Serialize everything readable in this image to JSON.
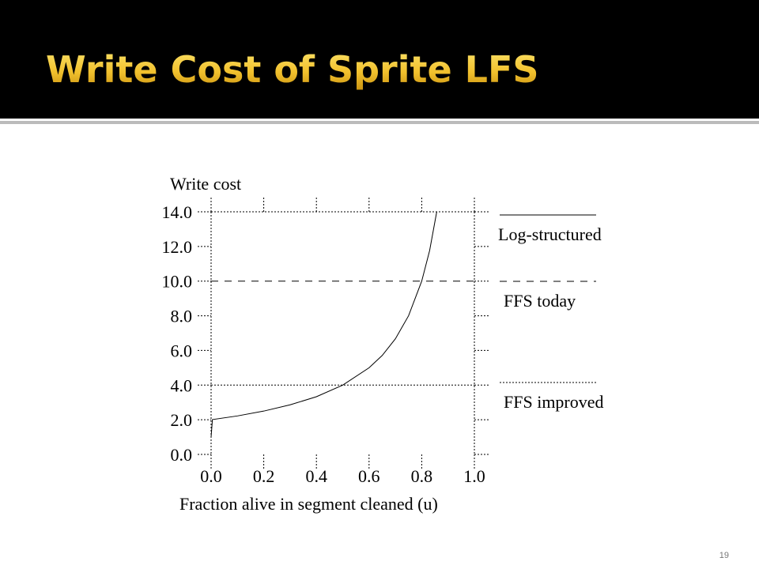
{
  "slide": {
    "title": "Write Cost of Sprite LFS",
    "page_number": "19"
  },
  "chart_data": {
    "type": "line",
    "y_label": "Write cost",
    "x_label": "Fraction alive in segment cleaned (u)",
    "xlim": [
      0,
      1
    ],
    "ylim": [
      0,
      14
    ],
    "xticks": [
      {
        "value": 0,
        "label": "0.0"
      },
      {
        "value": 0.2,
        "label": "0.2"
      },
      {
        "value": 0.4,
        "label": "0.4"
      },
      {
        "value": 0.6,
        "label": "0.6"
      },
      {
        "value": 0.8,
        "label": "0.8"
      },
      {
        "value": 1,
        "label": "1.0"
      }
    ],
    "yticks": [
      {
        "value": 0,
        "label": "0.0"
      },
      {
        "value": 2,
        "label": "2.0"
      },
      {
        "value": 4,
        "label": "4.0"
      },
      {
        "value": 6,
        "label": "6.0"
      },
      {
        "value": 8,
        "label": "8.0"
      },
      {
        "value": 10,
        "label": "10.0"
      },
      {
        "value": 12,
        "label": "12.0"
      },
      {
        "value": 14,
        "label": "14.0"
      }
    ],
    "grid": false,
    "series": [
      {
        "name": "Log-structured",
        "color": "#000000",
        "dash": "solid",
        "x": [
          0,
          0.005,
          0.1,
          0.2,
          0.3,
          0.4,
          0.5,
          0.6,
          0.65,
          0.7,
          0.75,
          0.8,
          0.83,
          0.857
        ],
        "values": [
          1,
          2.01,
          2.22,
          2.5,
          2.86,
          3.33,
          4,
          5,
          5.71,
          6.67,
          8,
          10,
          11.76,
          14
        ]
      },
      {
        "name": "FFS today",
        "color": "#000000",
        "dash": "dashed",
        "x": [
          0,
          1
        ],
        "values": [
          10,
          10
        ]
      },
      {
        "name": "FFS improved",
        "color": "#000000",
        "dash": "dotted",
        "x": [
          0,
          1
        ],
        "values": [
          4,
          4
        ]
      }
    ]
  }
}
